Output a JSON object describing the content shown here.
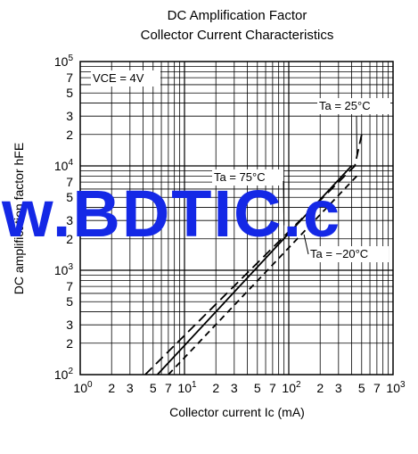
{
  "chart_data": {
    "type": "line",
    "title": [
      "DC Amplification Factor",
      "Collector Current Characteristics"
    ],
    "xlabel": "Collector current  Ic (mA)",
    "ylabel": "DC amplification factor  hFE",
    "x_scale": "log",
    "y_scale": "log",
    "xlim": [
      1,
      1000
    ],
    "ylim": [
      100,
      100000
    ],
    "grid": true,
    "x_ticks": [
      {
        "base": "10",
        "exp": "0"
      },
      {
        "label": "2"
      },
      {
        "label": "3"
      },
      {
        "label": "5"
      },
      {
        "label": "7"
      },
      {
        "base": "10",
        "exp": "1"
      },
      {
        "label": "2"
      },
      {
        "label": "3"
      },
      {
        "label": "5"
      },
      {
        "label": "7"
      },
      {
        "base": "10",
        "exp": "2"
      },
      {
        "label": "2"
      },
      {
        "label": "3"
      },
      {
        "label": "5"
      },
      {
        "label": "7"
      },
      {
        "base": "10",
        "exp": "3"
      }
    ],
    "y_ticks": [
      {
        "base": "10",
        "exp": "2"
      },
      {
        "label": "2"
      },
      {
        "label": "3"
      },
      {
        "label": "5"
      },
      {
        "label": "7"
      },
      {
        "base": "10",
        "exp": "3"
      },
      {
        "label": "2"
      },
      {
        "label": "3"
      },
      {
        "label": "5"
      },
      {
        "label": "7"
      },
      {
        "base": "10",
        "exp": "4"
      },
      {
        "label": "2"
      },
      {
        "label": "3"
      },
      {
        "label": "5"
      },
      {
        "label": "7"
      },
      {
        "base": "10",
        "exp": "5"
      }
    ],
    "condition": "VCE = 4V",
    "series": [
      {
        "name": "Ta = 25°C",
        "style": "dashed-long",
        "x": [
          4.2,
          430,
          500
        ],
        "y": [
          100,
          10000,
          20000
        ]
      },
      {
        "name": "Ta = 75°C",
        "style": "solid",
        "x": [
          5.5,
          400
        ],
        "y": [
          100,
          10000
        ]
      },
      {
        "name": "Ta = −20°C",
        "style": "dashed-short",
        "x": [
          7.0,
          450
        ],
        "y": [
          100,
          8000
        ]
      }
    ]
  },
  "watermark": "w.BDTIC.c"
}
